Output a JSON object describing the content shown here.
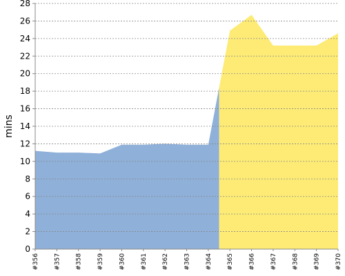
{
  "chart_data": {
    "type": "area",
    "y_label": "mins",
    "categories": [
      "#356",
      "#357",
      "#358",
      "#359",
      "#360",
      "#361",
      "#362",
      "#363",
      "#364",
      "#365",
      "#366",
      "#367",
      "#368",
      "#369",
      "#370"
    ],
    "series": [
      {
        "color": "#8fb0d9",
        "values": [
          11.2,
          11.0,
          11.0,
          10.9,
          11.9,
          11.9,
          12.0,
          11.9,
          11.9,
          null,
          null,
          null,
          null,
          null,
          null
        ]
      },
      {
        "color": "#fdeb76",
        "values": [
          null,
          null,
          null,
          null,
          null,
          null,
          null,
          null,
          null,
          24.9,
          26.7,
          23.2,
          23.2,
          23.2,
          24.6
        ]
      }
    ],
    "ylim": [
      0,
      28
    ],
    "yticks": [
      0,
      2,
      4,
      6,
      8,
      10,
      12,
      14,
      16,
      18,
      20,
      22,
      24,
      26,
      28
    ],
    "grid": true
  }
}
